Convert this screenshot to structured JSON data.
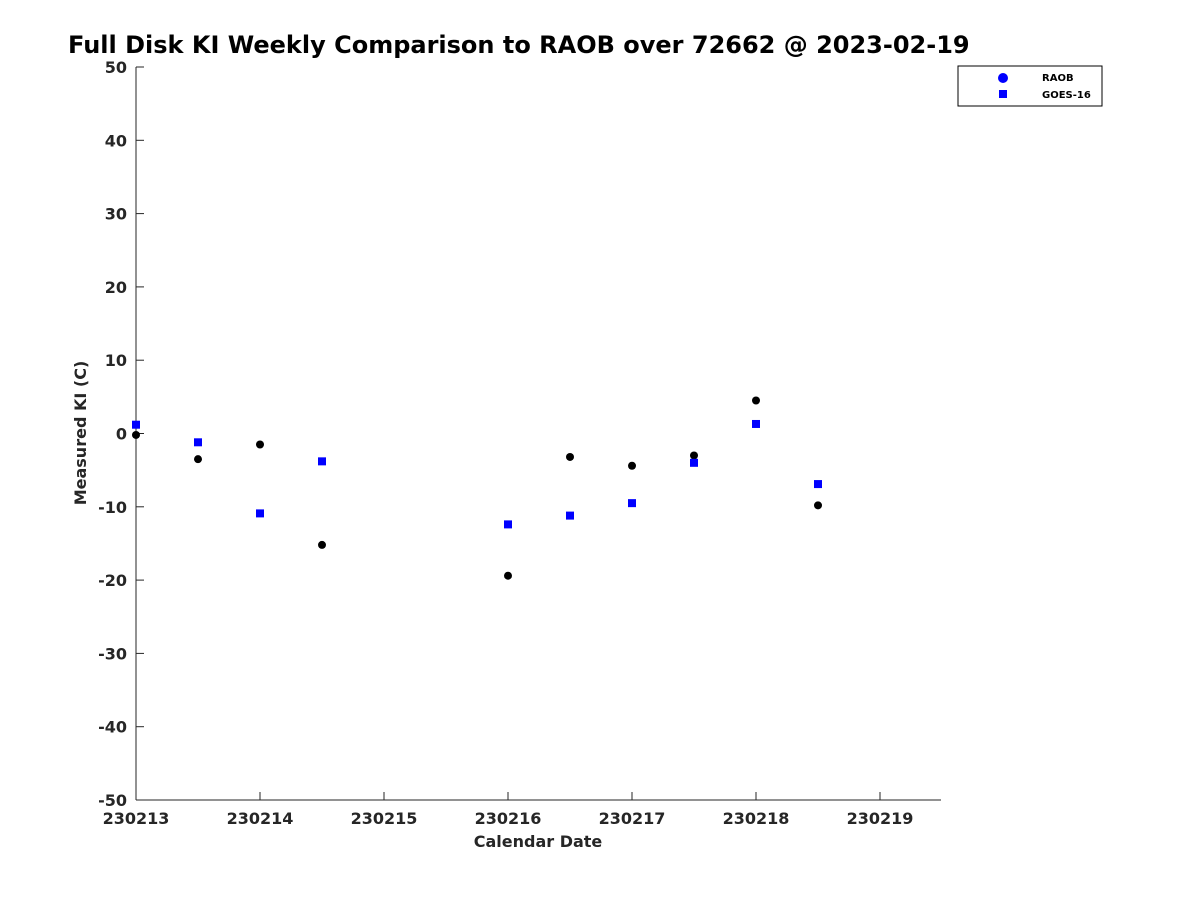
{
  "chart_data": {
    "type": "scatter",
    "title": "Full Disk KI Weekly Comparison to RAOB over 72662 @ 2023-02-19",
    "xlabel": "Calendar Date",
    "ylabel": "Measured KI (C)",
    "xlim": [
      "230213",
      "230219.5"
    ],
    "ylim": [
      -50,
      50
    ],
    "x_ticks": [
      "230213",
      "230214",
      "230215",
      "230216",
      "230217",
      "230218",
      "230219"
    ],
    "y_ticks": [
      -50,
      -40,
      -30,
      -20,
      -10,
      0,
      10,
      20,
      30,
      40,
      50
    ],
    "grid": false,
    "legend_position": "top-right",
    "series": [
      {
        "name": "RAOB",
        "marker": "circle",
        "color": "#000000",
        "legend_color": "#0000ff",
        "points": [
          {
            "x": "2023-02-13 00Z",
            "y": -0.2
          },
          {
            "x": "2023-02-13 12Z",
            "y": -3.5
          },
          {
            "x": "2023-02-14 00Z",
            "y": -1.5
          },
          {
            "x": "2023-02-14 12Z",
            "y": -15.2
          },
          {
            "x": "2023-02-16 00Z",
            "y": -19.4
          },
          {
            "x": "2023-02-16 12Z",
            "y": -3.2
          },
          {
            "x": "2023-02-17 00Z",
            "y": -4.4
          },
          {
            "x": "2023-02-17 12Z",
            "y": -3.0
          },
          {
            "x": "2023-02-18 00Z",
            "y": 4.5
          },
          {
            "x": "2023-02-18 12Z",
            "y": -9.8
          }
        ]
      },
      {
        "name": "GOES-16",
        "marker": "square",
        "color": "#0000ff",
        "legend_color": "#0000ff",
        "points": [
          {
            "x": "2023-02-13 00Z",
            "y": 1.2
          },
          {
            "x": "2023-02-13 12Z",
            "y": -1.2
          },
          {
            "x": "2023-02-14 00Z",
            "y": -10.9
          },
          {
            "x": "2023-02-14 12Z",
            "y": -3.8
          },
          {
            "x": "2023-02-16 00Z",
            "y": -12.4
          },
          {
            "x": "2023-02-16 12Z",
            "y": -11.2
          },
          {
            "x": "2023-02-17 00Z",
            "y": -9.5
          },
          {
            "x": "2023-02-17 12Z",
            "y": -4.0
          },
          {
            "x": "2023-02-18 00Z",
            "y": 1.3
          },
          {
            "x": "2023-02-18 12Z",
            "y": -6.9
          }
        ]
      }
    ]
  }
}
